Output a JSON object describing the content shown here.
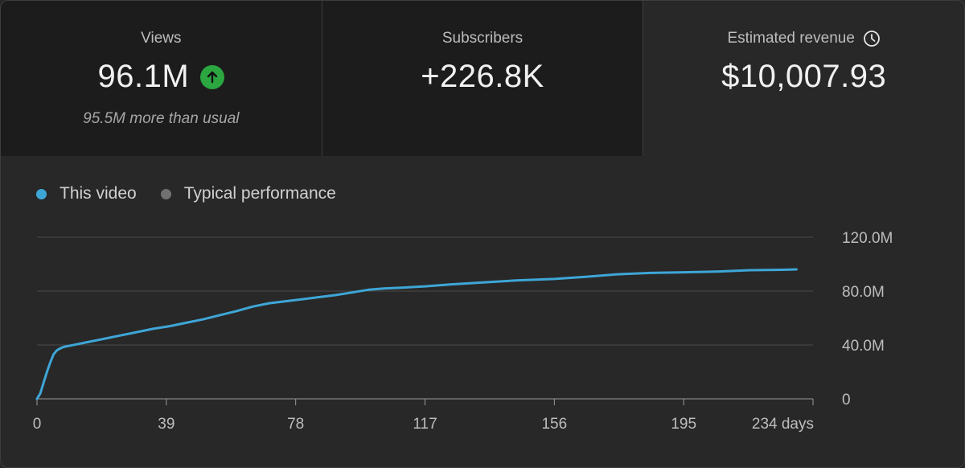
{
  "cards": [
    {
      "label": "Views",
      "value": "96.1M",
      "sub": "95.5M more than usual",
      "trend_icon": "arrow-up-icon",
      "trend_color": "#2ba640"
    },
    {
      "label": "Subscribers",
      "value": "+226.8K"
    },
    {
      "label": "Estimated revenue",
      "value": "$10,007.93",
      "info_icon": "clock-icon"
    }
  ],
  "legend": {
    "this_video": "This video",
    "typical": "Typical performance",
    "this_video_color": "#3ea6d7",
    "typical_color": "#717171"
  },
  "chart_data": {
    "type": "line",
    "title": "",
    "xlabel": "days",
    "ylabel": "",
    "xlim": [
      0,
      234
    ],
    "ylim": [
      0,
      120000000
    ],
    "x_ticks": [
      0,
      39,
      78,
      117,
      156,
      195,
      234
    ],
    "x_tick_labels": [
      "0",
      "39",
      "78",
      "117",
      "156",
      "195",
      "234 days"
    ],
    "y_ticks": [
      0,
      40000000,
      80000000,
      120000000
    ],
    "y_tick_labels": [
      "0",
      "40.0M",
      "80.0M",
      "120.0M"
    ],
    "grid": true,
    "series": [
      {
        "name": "This video",
        "color": "#3ea6d7",
        "x": [
          0,
          1,
          2,
          3,
          4,
          5,
          6,
          7,
          8,
          10,
          12,
          15,
          20,
          25,
          30,
          35,
          40,
          45,
          50,
          55,
          60,
          65,
          70,
          75,
          80,
          85,
          90,
          95,
          100,
          105,
          110,
          117,
          125,
          135,
          145,
          156,
          165,
          175,
          185,
          195,
          205,
          215,
          225,
          229
        ],
        "y": [
          0,
          4000000,
          12000000,
          20000000,
          27000000,
          33000000,
          36000000,
          37500000,
          38500000,
          39500000,
          40500000,
          42000000,
          44500000,
          47000000,
          49500000,
          52000000,
          54000000,
          56500000,
          59000000,
          62000000,
          65000000,
          68500000,
          71000000,
          72500000,
          74000000,
          75500000,
          77000000,
          79000000,
          81000000,
          82000000,
          82500000,
          83500000,
          85000000,
          86500000,
          88000000,
          89000000,
          90500000,
          92500000,
          93500000,
          94000000,
          94500000,
          95500000,
          95800000,
          96100000
        ]
      }
    ]
  }
}
